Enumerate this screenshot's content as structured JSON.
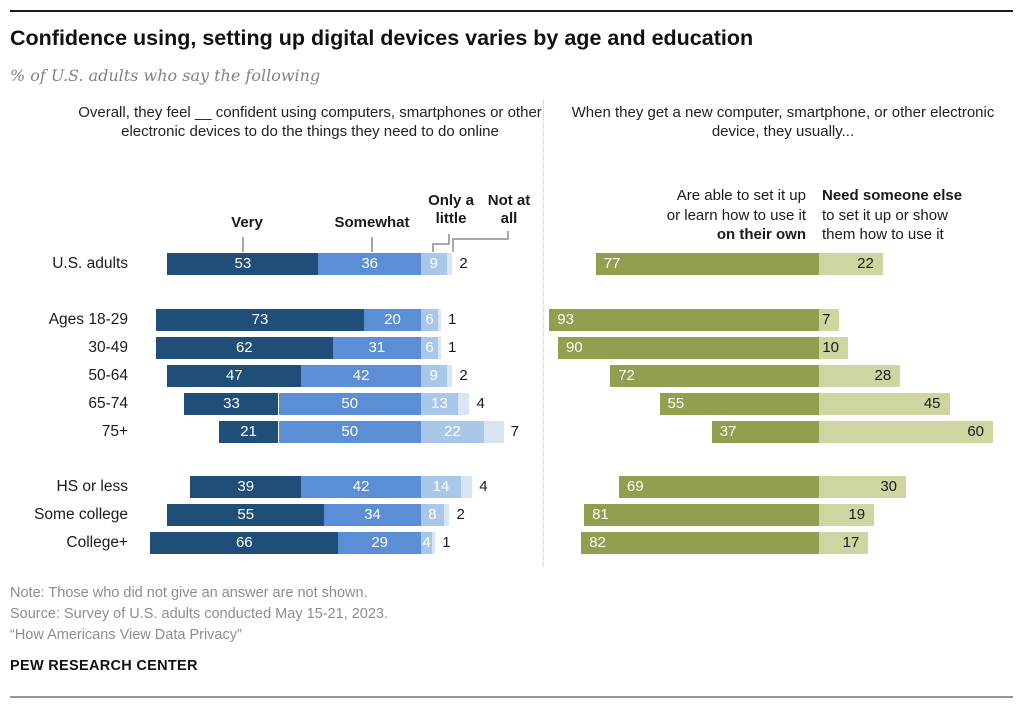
{
  "title": "Confidence using, setting up digital devices varies by age and education",
  "subtitle": "% of U.S. adults who say the following",
  "chart_data": [
    {
      "type": "bar",
      "variant": "horizontal-stacked, aligned at boundary between 2nd and 3rd segment",
      "title": "Overall, they feel __ confident using computers, smartphones or other electronic devices to do the things they need to do online",
      "legend": [
        "Very",
        "Somewhat",
        "Only a little",
        "Not at all"
      ],
      "legend_position": "top",
      "colors": [
        "#1F4E79",
        "#5B8ED4",
        "#A9C7E9",
        "#D9E5F5"
      ],
      "categories": [
        "U.S. adults",
        "Ages 18-29",
        "30-49",
        "50-64",
        "65-74",
        "75+",
        "HS or less",
        "Some college",
        "College+"
      ],
      "series": [
        {
          "name": "Very",
          "values": [
            53,
            73,
            62,
            47,
            33,
            21,
            39,
            55,
            66
          ]
        },
        {
          "name": "Somewhat",
          "values": [
            36,
            20,
            31,
            42,
            50,
            50,
            42,
            34,
            29
          ]
        },
        {
          "name": "Only a little",
          "values": [
            9,
            6,
            6,
            9,
            13,
            22,
            14,
            8,
            4
          ]
        },
        {
          "name": "Not at all",
          "values": [
            2,
            1,
            1,
            2,
            4,
            7,
            4,
            2,
            1
          ]
        }
      ],
      "xlim": [
        0,
        100
      ],
      "grid": false
    },
    {
      "type": "bar",
      "variant": "horizontal paired segments, aligned at shared boundary",
      "title": "When they get a new computer, smartphone, or other electronic device, they usually...",
      "legend": [
        "Are able to set it up or learn how to use it on their own",
        "Need someone else to set it up or show them how to use it"
      ],
      "legend_position": "top",
      "colors": [
        "#949E4F",
        "#CFD4A0"
      ],
      "categories": [
        "U.S. adults",
        "Ages 18-29",
        "30-49",
        "50-64",
        "65-74",
        "75+",
        "HS or less",
        "Some college",
        "College+"
      ],
      "series": [
        {
          "name": "Are able to set it up or learn how to use it on their own",
          "values": [
            77,
            93,
            90,
            72,
            55,
            37,
            69,
            81,
            82
          ]
        },
        {
          "name": "Need someone else to set it up or show them how to use it",
          "values": [
            22,
            7,
            10,
            28,
            45,
            60,
            30,
            19,
            17
          ]
        }
      ],
      "xlim": [
        0,
        100
      ],
      "grid": false
    }
  ],
  "right_legend_display": {
    "own_lines": [
      "Are able to set it up",
      "or learn how to use it",
      "on their own"
    ],
    "else_lines": [
      "Need someone else",
      "to set it up or show",
      "them how to use it"
    ]
  },
  "notes": [
    "Note: Those who did not give an answer are not shown.",
    "Source: Survey of U.S. adults conducted May 15-21, 2023.",
    "“How Americans View Data Privacy”"
  ],
  "footer": "PEW RESEARCH CENTER"
}
